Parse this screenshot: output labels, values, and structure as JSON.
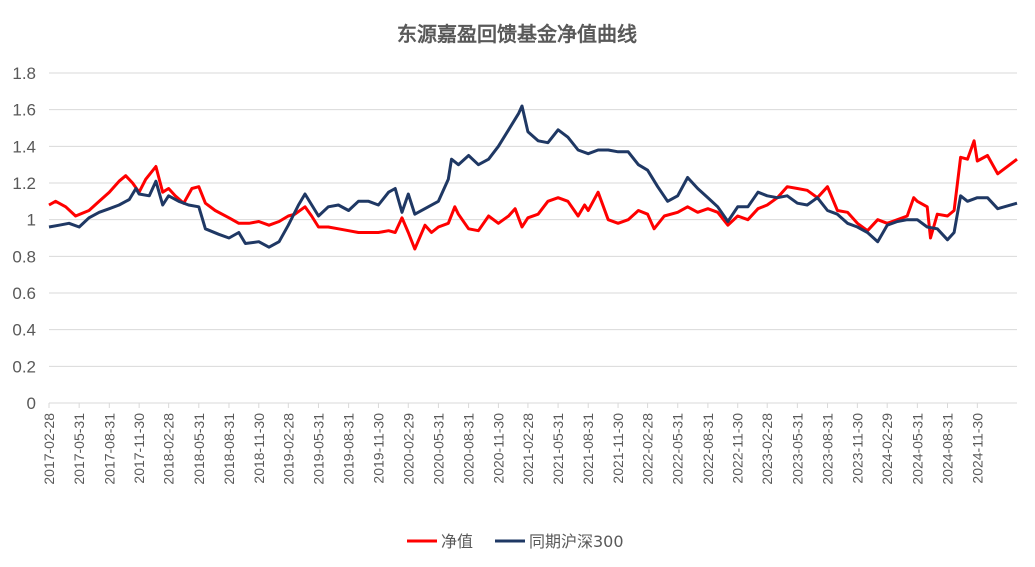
{
  "chart_data": {
    "type": "line",
    "title": "东源嘉盈回馈基金净值曲线",
    "xlabel": "",
    "ylabel": "",
    "ylim": [
      0,
      1.8
    ],
    "ytick_labels": [
      "0",
      "0.2",
      "0.4",
      "0.6",
      "0.8",
      "1",
      "1.2",
      "1.4",
      "1.6",
      "1.8"
    ],
    "grid": true,
    "legend_position": "bottom",
    "x_start": "2017-02-28",
    "x_end": "2025-03-31",
    "xtick_labels": [
      "2017-02-28",
      "2017-05-31",
      "2017-08-31",
      "2017-11-30",
      "2018-02-28",
      "2018-05-31",
      "2018-08-31",
      "2018-11-30",
      "2019-02-28",
      "2019-05-31",
      "2019-08-31",
      "2019-11-30",
      "2020-02-29",
      "2020-05-31",
      "2020-08-31",
      "2020-11-30",
      "2021-02-28",
      "2021-05-31",
      "2021-08-31",
      "2021-11-30",
      "2022-02-28",
      "2022-05-31",
      "2022-08-31",
      "2022-11-30",
      "2023-02-28",
      "2023-05-31",
      "2023-08-31",
      "2023-11-30",
      "2024-02-29",
      "2024-05-31",
      "2024-08-31",
      "2024-11-30"
    ],
    "series": [
      {
        "name": "净值",
        "color": "#ff0000",
        "points": [
          [
            "2017-02-28",
            1.08
          ],
          [
            "2017-03-20",
            1.1
          ],
          [
            "2017-04-20",
            1.07
          ],
          [
            "2017-05-20",
            1.02
          ],
          [
            "2017-06-30",
            1.05
          ],
          [
            "2017-07-31",
            1.1
          ],
          [
            "2017-08-31",
            1.15
          ],
          [
            "2017-09-30",
            1.21
          ],
          [
            "2017-10-20",
            1.24
          ],
          [
            "2017-11-10",
            1.2
          ],
          [
            "2017-11-30",
            1.15
          ],
          [
            "2017-12-20",
            1.22
          ],
          [
            "2018-01-20",
            1.29
          ],
          [
            "2018-02-10",
            1.15
          ],
          [
            "2018-02-28",
            1.17
          ],
          [
            "2018-03-20",
            1.13
          ],
          [
            "2018-04-15",
            1.09
          ],
          [
            "2018-05-10",
            1.17
          ],
          [
            "2018-05-31",
            1.18
          ],
          [
            "2018-06-20",
            1.09
          ],
          [
            "2018-07-20",
            1.05
          ],
          [
            "2018-08-31",
            1.01
          ],
          [
            "2018-09-30",
            0.98
          ],
          [
            "2018-10-31",
            0.98
          ],
          [
            "2018-11-30",
            0.99
          ],
          [
            "2018-12-31",
            0.97
          ],
          [
            "2019-01-31",
            0.99
          ],
          [
            "2019-02-28",
            1.02
          ],
          [
            "2019-03-20",
            1.03
          ],
          [
            "2019-04-20",
            1.07
          ],
          [
            "2019-05-10",
            1.02
          ],
          [
            "2019-05-31",
            0.96
          ],
          [
            "2019-06-30",
            0.96
          ],
          [
            "2019-07-31",
            0.95
          ],
          [
            "2019-08-31",
            0.94
          ],
          [
            "2019-09-30",
            0.93
          ],
          [
            "2019-10-31",
            0.93
          ],
          [
            "2019-11-30",
            0.93
          ],
          [
            "2019-12-31",
            0.94
          ],
          [
            "2020-01-20",
            0.93
          ],
          [
            "2020-02-10",
            1.01
          ],
          [
            "2020-02-29",
            0.93
          ],
          [
            "2020-03-20",
            0.84
          ],
          [
            "2020-04-20",
            0.97
          ],
          [
            "2020-05-10",
            0.93
          ],
          [
            "2020-05-31",
            0.96
          ],
          [
            "2020-06-30",
            0.98
          ],
          [
            "2020-07-20",
            1.07
          ],
          [
            "2020-07-31",
            1.03
          ],
          [
            "2020-08-31",
            0.95
          ],
          [
            "2020-09-30",
            0.94
          ],
          [
            "2020-10-31",
            1.02
          ],
          [
            "2020-11-30",
            0.98
          ],
          [
            "2020-12-31",
            1.02
          ],
          [
            "2021-01-20",
            1.06
          ],
          [
            "2021-02-10",
            0.96
          ],
          [
            "2021-02-28",
            1.01
          ],
          [
            "2021-03-31",
            1.03
          ],
          [
            "2021-04-30",
            1.1
          ],
          [
            "2021-05-31",
            1.12
          ],
          [
            "2021-06-30",
            1.1
          ],
          [
            "2021-07-31",
            1.02
          ],
          [
            "2021-08-20",
            1.08
          ],
          [
            "2021-08-31",
            1.05
          ],
          [
            "2021-09-30",
            1.15
          ],
          [
            "2021-10-31",
            1.0
          ],
          [
            "2021-11-30",
            0.98
          ],
          [
            "2021-12-31",
            1.0
          ],
          [
            "2022-01-31",
            1.05
          ],
          [
            "2022-02-28",
            1.03
          ],
          [
            "2022-03-20",
            0.95
          ],
          [
            "2022-04-20",
            1.02
          ],
          [
            "2022-05-31",
            1.04
          ],
          [
            "2022-06-30",
            1.07
          ],
          [
            "2022-07-31",
            1.04
          ],
          [
            "2022-08-31",
            1.06
          ],
          [
            "2022-09-30",
            1.04
          ],
          [
            "2022-10-31",
            0.97
          ],
          [
            "2022-11-30",
            1.02
          ],
          [
            "2022-12-31",
            1.0
          ],
          [
            "2023-01-31",
            1.06
          ],
          [
            "2023-02-28",
            1.08
          ],
          [
            "2023-03-31",
            1.12
          ],
          [
            "2023-04-30",
            1.18
          ],
          [
            "2023-05-31",
            1.17
          ],
          [
            "2023-06-30",
            1.16
          ],
          [
            "2023-07-31",
            1.12
          ],
          [
            "2023-08-31",
            1.18
          ],
          [
            "2023-09-30",
            1.05
          ],
          [
            "2023-10-31",
            1.04
          ],
          [
            "2023-11-30",
            0.98
          ],
          [
            "2023-12-31",
            0.94
          ],
          [
            "2024-01-31",
            1.0
          ],
          [
            "2024-02-29",
            0.98
          ],
          [
            "2024-03-31",
            1.0
          ],
          [
            "2024-04-30",
            1.02
          ],
          [
            "2024-05-20",
            1.12
          ],
          [
            "2024-05-31",
            1.1
          ],
          [
            "2024-06-30",
            1.07
          ],
          [
            "2024-07-10",
            0.9
          ],
          [
            "2024-07-31",
            1.03
          ],
          [
            "2024-08-31",
            1.02
          ],
          [
            "2024-09-20",
            1.05
          ],
          [
            "2024-10-10",
            1.34
          ],
          [
            "2024-10-31",
            1.33
          ],
          [
            "2024-11-20",
            1.43
          ],
          [
            "2024-11-30",
            1.32
          ],
          [
            "2024-12-31",
            1.35
          ],
          [
            "2025-01-31",
            1.25
          ],
          [
            "2025-03-31",
            1.33
          ]
        ]
      },
      {
        "name": "同期沪深300",
        "color": "#1f3864",
        "points": [
          [
            "2017-02-28",
            0.96
          ],
          [
            "2017-03-31",
            0.97
          ],
          [
            "2017-04-30",
            0.98
          ],
          [
            "2017-05-31",
            0.96
          ],
          [
            "2017-06-30",
            1.01
          ],
          [
            "2017-07-31",
            1.04
          ],
          [
            "2017-08-31",
            1.06
          ],
          [
            "2017-09-30",
            1.08
          ],
          [
            "2017-10-31",
            1.11
          ],
          [
            "2017-11-20",
            1.17
          ],
          [
            "2017-11-30",
            1.14
          ],
          [
            "2017-12-31",
            1.13
          ],
          [
            "2018-01-20",
            1.21
          ],
          [
            "2018-02-10",
            1.08
          ],
          [
            "2018-02-28",
            1.13
          ],
          [
            "2018-03-31",
            1.1
          ],
          [
            "2018-04-30",
            1.08
          ],
          [
            "2018-05-31",
            1.07
          ],
          [
            "2018-06-20",
            0.95
          ],
          [
            "2018-07-31",
            0.92
          ],
          [
            "2018-08-31",
            0.9
          ],
          [
            "2018-09-30",
            0.93
          ],
          [
            "2018-10-20",
            0.87
          ],
          [
            "2018-11-30",
            0.88
          ],
          [
            "2018-12-31",
            0.85
          ],
          [
            "2019-01-31",
            0.88
          ],
          [
            "2019-02-28",
            0.97
          ],
          [
            "2019-03-31",
            1.08
          ],
          [
            "2019-04-20",
            1.14
          ],
          [
            "2019-05-31",
            1.02
          ],
          [
            "2019-06-30",
            1.07
          ],
          [
            "2019-07-31",
            1.08
          ],
          [
            "2019-08-31",
            1.05
          ],
          [
            "2019-09-30",
            1.1
          ],
          [
            "2019-10-31",
            1.1
          ],
          [
            "2019-11-30",
            1.08
          ],
          [
            "2019-12-31",
            1.15
          ],
          [
            "2020-01-20",
            1.17
          ],
          [
            "2020-02-10",
            1.04
          ],
          [
            "2020-02-29",
            1.14
          ],
          [
            "2020-03-20",
            1.03
          ],
          [
            "2020-04-30",
            1.07
          ],
          [
            "2020-05-31",
            1.1
          ],
          [
            "2020-06-30",
            1.22
          ],
          [
            "2020-07-10",
            1.33
          ],
          [
            "2020-07-31",
            1.3
          ],
          [
            "2020-08-31",
            1.35
          ],
          [
            "2020-09-30",
            1.3
          ],
          [
            "2020-10-31",
            1.33
          ],
          [
            "2020-11-30",
            1.4
          ],
          [
            "2020-12-31",
            1.49
          ],
          [
            "2021-01-31",
            1.58
          ],
          [
            "2021-02-10",
            1.62
          ],
          [
            "2021-02-28",
            1.48
          ],
          [
            "2021-03-31",
            1.43
          ],
          [
            "2021-04-30",
            1.42
          ],
          [
            "2021-05-31",
            1.49
          ],
          [
            "2021-06-30",
            1.45
          ],
          [
            "2021-07-31",
            1.38
          ],
          [
            "2021-08-31",
            1.36
          ],
          [
            "2021-09-30",
            1.38
          ],
          [
            "2021-10-31",
            1.38
          ],
          [
            "2021-11-30",
            1.37
          ],
          [
            "2021-12-31",
            1.37
          ],
          [
            "2022-01-31",
            1.3
          ],
          [
            "2022-02-28",
            1.27
          ],
          [
            "2022-03-31",
            1.18
          ],
          [
            "2022-04-30",
            1.1
          ],
          [
            "2022-05-31",
            1.13
          ],
          [
            "2022-06-30",
            1.23
          ],
          [
            "2022-07-31",
            1.17
          ],
          [
            "2022-08-31",
            1.12
          ],
          [
            "2022-09-30",
            1.07
          ],
          [
            "2022-10-31",
            0.99
          ],
          [
            "2022-11-30",
            1.07
          ],
          [
            "2022-12-31",
            1.07
          ],
          [
            "2023-01-31",
            1.15
          ],
          [
            "2023-02-28",
            1.13
          ],
          [
            "2023-03-31",
            1.12
          ],
          [
            "2023-04-30",
            1.13
          ],
          [
            "2023-05-31",
            1.09
          ],
          [
            "2023-06-30",
            1.08
          ],
          [
            "2023-07-31",
            1.12
          ],
          [
            "2023-08-31",
            1.05
          ],
          [
            "2023-09-30",
            1.03
          ],
          [
            "2023-10-31",
            0.98
          ],
          [
            "2023-11-30",
            0.96
          ],
          [
            "2023-12-31",
            0.93
          ],
          [
            "2024-01-31",
            0.88
          ],
          [
            "2024-02-29",
            0.97
          ],
          [
            "2024-03-31",
            0.99
          ],
          [
            "2024-04-30",
            1.0
          ],
          [
            "2024-05-31",
            1.0
          ],
          [
            "2024-06-30",
            0.96
          ],
          [
            "2024-07-31",
            0.95
          ],
          [
            "2024-08-31",
            0.89
          ],
          [
            "2024-09-20",
            0.93
          ],
          [
            "2024-10-10",
            1.13
          ],
          [
            "2024-10-31",
            1.1
          ],
          [
            "2024-11-30",
            1.12
          ],
          [
            "2024-12-31",
            1.12
          ],
          [
            "2025-01-31",
            1.06
          ],
          [
            "2025-03-31",
            1.09
          ]
        ]
      }
    ]
  }
}
